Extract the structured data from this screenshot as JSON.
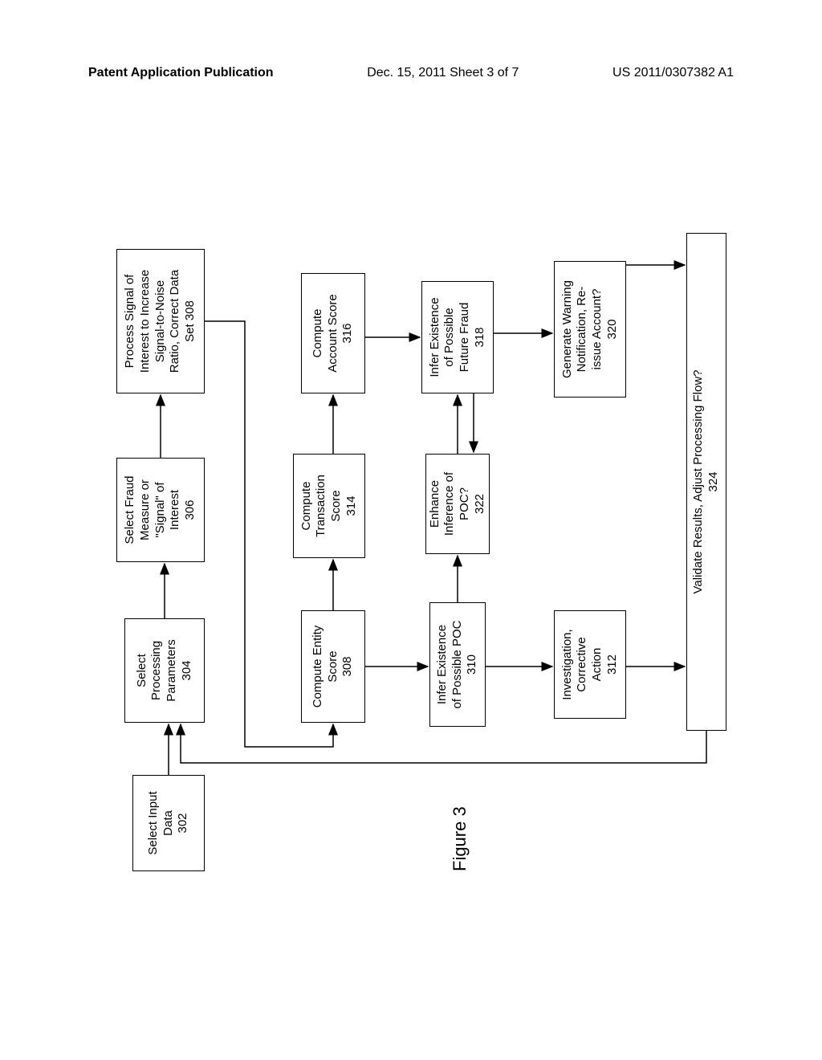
{
  "header": {
    "left": "Patent Application Publication",
    "center": "Dec. 15, 2011  Sheet 3 of 7",
    "right": "US 2011/0307382 A1"
  },
  "figure_label": "Figure 3",
  "boxes": {
    "b302": "Select Input\nData\n302",
    "b304": "Select\nProcessing\nParameters\n304",
    "b306": "Select Fraud\nMeasure or\n\"Signal\" of\nInterest\n306",
    "b308a": "Process Signal of\nInterest to Increase\nSignal-to-Noise\nRatio, Correct Data\nSet 308",
    "b308b": "Compute Entity\nScore\n308",
    "b314": "Compute\nTransaction\nScore\n314",
    "b316": "Compute\nAccount Score\n316",
    "b310": "Infer Existence\nof Possible POC\n310",
    "b322": "Enhance\nInference of\nPOC?\n322",
    "b318": "Infer Existence\nof Possible\nFuture Fraud\n318",
    "b312": "Investigation,\nCorrective\nAction\n312",
    "b320": "Generate Warning\nNotification, Re-\nissue Account?\n320",
    "b324": "Validate Results, Adjust Processing Flow?\n324"
  },
  "layout": {
    "font_family": "Arial",
    "background_color": "#ffffff",
    "border_color": "#000000",
    "box_font_size": 15,
    "header_font_size": 16,
    "figure_label_font_size": 22
  }
}
